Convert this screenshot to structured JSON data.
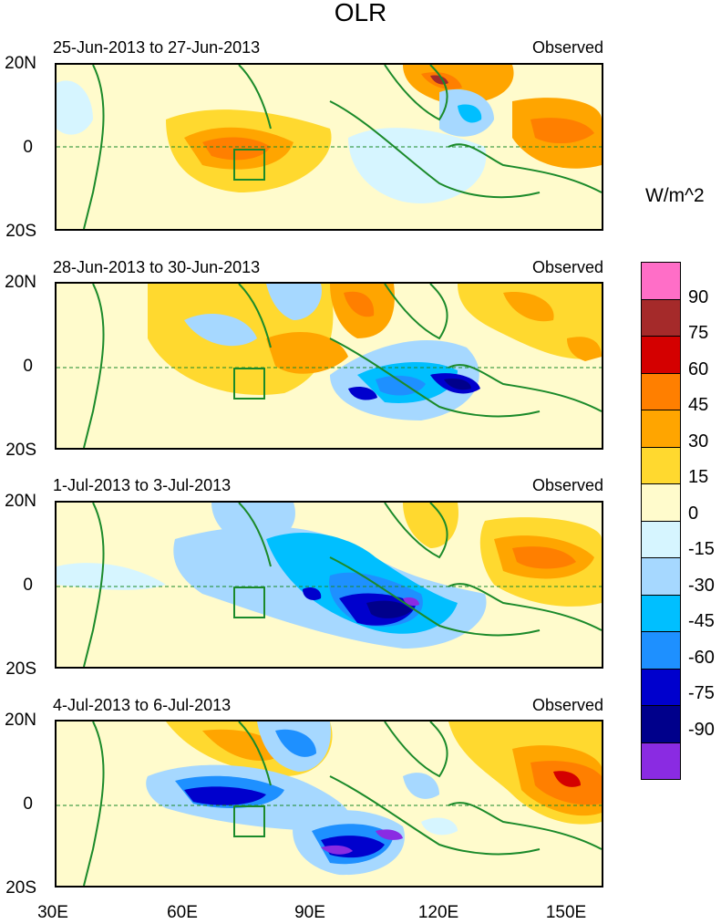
{
  "title": "OLR",
  "units": "W/m^2",
  "panels": [
    {
      "period": "25-Jun-2013 to 27-Jun-2013",
      "label": "Observed"
    },
    {
      "period": "28-Jun-2013 to 30-Jun-2013",
      "label": "Observed"
    },
    {
      "period": "1-Jul-2013 to 3-Jul-2013",
      "label": "Observed"
    },
    {
      "period": "4-Jul-2013 to 6-Jul-2013",
      "label": "Observed"
    }
  ],
  "lat_labels": {
    "north": "20N",
    "equator": "0",
    "south": "20S"
  },
  "lon_labels": [
    "30E",
    "60E",
    "90E",
    "120E",
    "150E"
  ],
  "colorbar": {
    "labels": [
      "90",
      "75",
      "60",
      "45",
      "30",
      "15",
      "0",
      "-15",
      "-30",
      "-45",
      "-60",
      "-75",
      "-90"
    ],
    "colors": [
      "#ff6ec7",
      "#a52a2a",
      "#d40000",
      "#ff7f00",
      "#ffa500",
      "#ffd92f",
      "#fffbcc",
      "#d6f5ff",
      "#a6d8ff",
      "#00bfff",
      "#1e90ff",
      "#0000cd",
      "#00008b",
      "#8a2be2"
    ]
  }
}
